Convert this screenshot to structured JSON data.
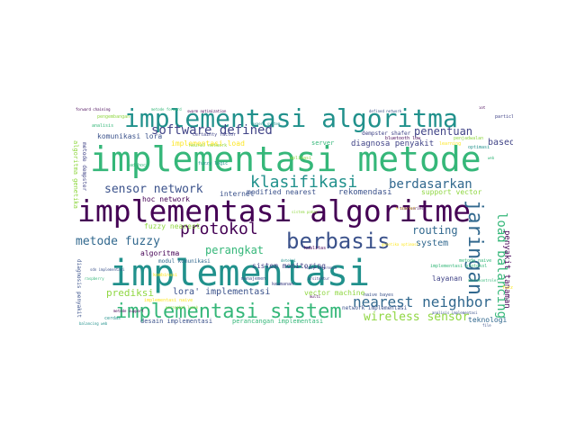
{
  "palette": {
    "purple": "#440154",
    "indigo": "#3b528b",
    "blue": "#31688e",
    "teal": "#21918c",
    "green": "#35b779",
    "lime": "#90d743",
    "yellow": "#fde725",
    "navy": "#414487"
  },
  "words": [
    {
      "text": "implementasi algoritma",
      "color": "#21918c"
    },
    {
      "text": "implementasi metode",
      "color": "#35b779"
    },
    {
      "text": "implementasi algoritme",
      "color": "#440154"
    },
    {
      "text": "implementasi",
      "color": "#21918c"
    },
    {
      "text": "implementasi sistem",
      "color": "#35b779"
    },
    {
      "text": "berbasis",
      "color": "#3b528b"
    },
    {
      "text": "protokol",
      "color": "#440154"
    },
    {
      "text": "klasifikasi",
      "color": "#21918c"
    },
    {
      "text": "software defined",
      "color": "#414487"
    },
    {
      "text": "berdasarkan",
      "color": "#31688e"
    },
    {
      "text": "jaringan",
      "color": "#31688e"
    },
    {
      "text": "nearest neighbor",
      "color": "#31688e"
    },
    {
      "text": "load balancing",
      "color": "#35b779"
    },
    {
      "text": "wireless sensor",
      "color": "#90d743"
    },
    {
      "text": "sensor network",
      "color": "#3b528b"
    },
    {
      "text": "metode fuzzy",
      "color": "#31688e"
    },
    {
      "text": "penentuan",
      "color": "#414487"
    },
    {
      "text": "routing",
      "color": "#31688e"
    },
    {
      "text": "perangkat",
      "color": "#35b779"
    },
    {
      "text": "prediksi",
      "color": "#90d743"
    },
    {
      "text": "lora' implementasi",
      "color": "#3b528b"
    },
    {
      "text": "system",
      "color": "#31688e"
    },
    {
      "text": "based",
      "color": "#414487"
    },
    {
      "text": "penyakit tanaman",
      "color": "#440154"
    },
    {
      "text": "rekomendasi",
      "color": "#3b528b"
    },
    {
      "text": "diagnosa penyakit",
      "color": "#414487"
    },
    {
      "text": "implementasi load",
      "color": "#fde725"
    },
    {
      "text": "komunikasi lora",
      "color": "#3b528b"
    },
    {
      "text": "hoc network",
      "color": "#440154"
    },
    {
      "text": "internet",
      "color": "#3b528b"
    },
    {
      "text": "modified nearest",
      "color": "#3b528b"
    },
    {
      "text": "support vector",
      "color": "#90d743"
    },
    {
      "text": "layanan",
      "color": "#414487"
    },
    {
      "text": "teknologi",
      "color": "#31688e"
    },
    {
      "text": "fuzzy nearest",
      "color": "#90d743"
    },
    {
      "text": "algoritma",
      "color": "#440154"
    },
    {
      "text": "sistem monitoring",
      "color": "#414487"
    },
    {
      "text": "vector machine",
      "color": "#90d743"
    },
    {
      "text": "server",
      "color": "#35b779"
    },
    {
      "text": "desain implementasi",
      "color": "#3b528b"
    },
    {
      "text": "perancangan implementasi",
      "color": "#35b779"
    },
    {
      "text": "dempster shafer",
      "color": "#414487"
    },
    {
      "text": "algoritma genetika",
      "color": "#90d743"
    },
    {
      "text": "metode dempster",
      "color": "#414487"
    },
    {
      "text": "diagnosis penyakit",
      "color": "#3b528b"
    },
    {
      "text": "modul komunikasi",
      "color": "#31688e"
    },
    {
      "text": "pengembangan",
      "color": "#90d743"
    },
    {
      "text": "analisis",
      "color": "#35b779"
    },
    {
      "text": "cerdas",
      "color": "#21918c"
    },
    {
      "text": "kombinasi",
      "color": "#fde725"
    },
    {
      "text": "naive bayes",
      "color": "#3b528b"
    },
    {
      "text": "network  implementasi",
      "color": "#3b528b"
    },
    {
      "text": "certainty factor",
      "color": "#414487"
    },
    {
      "text": "neural network",
      "color": "#90d743"
    },
    {
      "text": "ad hoc",
      "color": "#35b779"
    },
    {
      "text": "implementasi naive",
      "color": "#fde725"
    },
    {
      "text": "bluetooth low",
      "color": "#440154"
    },
    {
      "text": "fuzzy logic",
      "color": "#21918c"
    },
    {
      "text": "aplikasi",
      "color": "#90d743"
    },
    {
      "text": "implementasi protokol",
      "color": "#35b779"
    },
    {
      "text": "learning",
      "color": "#fde725"
    },
    {
      "text": "manajemen",
      "color": "#3b528b"
    },
    {
      "text": "keamanan",
      "color": "#414487"
    },
    {
      "text": "kualitas",
      "color": "#440154"
    },
    {
      "text": "metode naive",
      "color": "#35b779"
    },
    {
      "text": "penjadwalan",
      "color": "#90d743"
    },
    {
      "text": "optimasi",
      "color": "#21918c"
    },
    {
      "text": "fuzzy tsukamoto",
      "color": "#fde725"
    },
    {
      "text": "particle swarm",
      "color": "#414487"
    },
    {
      "text": "swarm optimization",
      "color": "#440154"
    },
    {
      "text": "defined network",
      "color": "#3b528b"
    },
    {
      "text": "metode forward",
      "color": "#35b779"
    },
    {
      "text": "forward chaining",
      "color": "#440154"
    },
    {
      "text": "expert system",
      "color": "#21918c"
    },
    {
      "text": "sistem pakar",
      "color": "#90d743"
    },
    {
      "text": "k nearest",
      "color": "#fde725"
    },
    {
      "text": "multi",
      "color": "#440154"
    },
    {
      "text": "arsitektur",
      "color": "#414487"
    },
    {
      "text": "analisis implementasi",
      "color": "#3b528b"
    },
    {
      "text": "raspberry",
      "color": "#35b779"
    },
    {
      "text": "balancing web",
      "color": "#21918c"
    },
    {
      "text": "perangkat lunak",
      "color": "#90d743"
    },
    {
      "text": "metode support",
      "color": "#440154"
    },
    {
      "text": "sdn implementasi",
      "color": "#3b528b"
    },
    {
      "text": "mikrokontroler",
      "color": "#35b779"
    },
    {
      "text": "genetika optimasi",
      "color": "#fde725"
    },
    {
      "text": "fuzzy inference",
      "color": "#414487"
    },
    {
      "text": "time series",
      "color": "#440154"
    },
    {
      "text": "deteksi",
      "color": "#21918c"
    },
    {
      "text": "iot",
      "color": "#440154"
    },
    {
      "text": "file",
      "color": "#3b528b"
    },
    {
      "text": "web",
      "color": "#35b779"
    }
  ]
}
